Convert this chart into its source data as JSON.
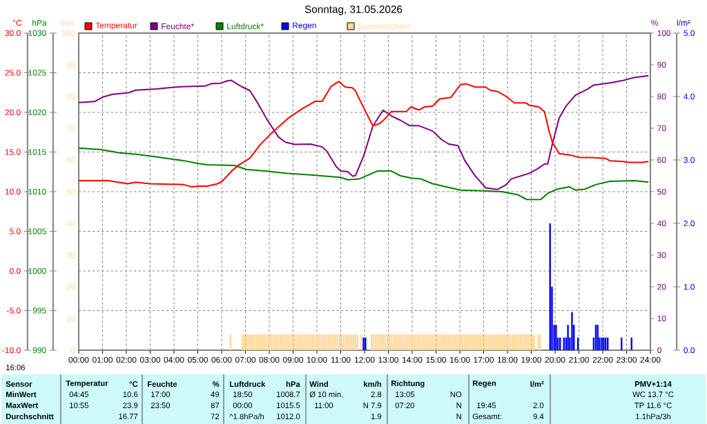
{
  "chart_data": [
    {
      "type": "line",
      "title": "Sonntag, 31.05.2026",
      "ylabel": "°C",
      "y2label": "%",
      "y3label": "hPa",
      "xlim": [
        0,
        24
      ],
      "xticks": [
        {
          "value": 0,
          "label": "00:00"
        },
        {
          "value": 1,
          "label": "01:00"
        },
        {
          "value": 2,
          "label": "02:00"
        },
        {
          "value": 3,
          "label": "03:00"
        },
        {
          "value": 4,
          "label": "04:00"
        },
        {
          "value": 5,
          "label": "05:00"
        },
        {
          "value": 6,
          "label": "06:00"
        },
        {
          "value": 7,
          "label": "07:00"
        },
        {
          "value": 8,
          "label": "08:00"
        },
        {
          "value": 9,
          "label": "09:00"
        },
        {
          "value": 10,
          "label": "10:00"
        },
        {
          "value": 11,
          "label": "11:00"
        },
        {
          "value": 12,
          "label": "12:00"
        },
        {
          "value": 13,
          "label": "13:00"
        },
        {
          "value": 14,
          "label": "14:00"
        },
        {
          "value": 15,
          "label": "15:00"
        },
        {
          "value": 16,
          "label": "16:00"
        },
        {
          "value": 17,
          "label": "17:00"
        },
        {
          "value": 18,
          "label": "18:00"
        },
        {
          "value": 19,
          "label": "19:00"
        },
        {
          "value": 20,
          "label": "20:00"
        },
        {
          "value": 21,
          "label": "21:00"
        },
        {
          "value": 22,
          "label": "22:00"
        },
        {
          "value": 23,
          "label": "23:00"
        },
        {
          "value": 24,
          "label": "24:00"
        }
      ],
      "ylim": [
        -10,
        30
      ],
      "yticks": [
        {
          "value": -10,
          "label": "-10.0"
        },
        {
          "value": -5,
          "label": "-5.0"
        },
        {
          "value": 0,
          "label": "0.0"
        },
        {
          "value": 5,
          "label": "5.0"
        },
        {
          "value": 10,
          "label": "10.0"
        },
        {
          "value": 15,
          "label": "15.0"
        },
        {
          "value": 20,
          "label": "20.0"
        },
        {
          "value": 25,
          "label": "25.0"
        },
        {
          "value": 30,
          "label": "30.0"
        }
      ],
      "y2lim": [
        0,
        100
      ],
      "y2ticks": [
        0,
        10,
        20,
        30,
        40,
        50,
        60,
        70,
        80,
        90,
        100
      ],
      "y3lim": [
        990,
        1030
      ],
      "y3ticks": [
        990,
        995,
        1000,
        1005,
        1010,
        1015,
        1020,
        1025,
        1030
      ],
      "grid": true,
      "legend": "top",
      "series": [
        {
          "name": "Temperatur",
          "color": "#ff0000",
          "x": [
            0,
            1.24,
            2.06,
            2.4,
            2.98,
            4.4,
            4.75,
            5.0,
            5.4,
            5.83,
            6.02,
            6.45,
            6.74,
            7.18,
            7.61,
            8.1,
            8.77,
            9.35,
            9.93,
            10.22,
            10.6,
            10.92,
            11.19,
            11.48,
            11.6,
            11.96,
            12.35,
            12.64,
            12.83,
            13.12,
            13.75,
            13.95,
            14.28,
            14.53,
            14.86,
            15.15,
            15.63,
            16.02,
            16.26,
            16.65,
            17.08,
            17.27,
            17.61,
            17.95,
            18.29,
            18.77,
            18.92,
            19.31,
            19.55,
            19.74,
            19.89,
            20.17,
            20.66,
            21.04,
            21.53,
            22.11,
            22.3,
            22.88,
            23.03,
            23.36,
            23.65,
            23.92
          ],
          "values": [
            11.4,
            11.4,
            11.0,
            11.2,
            11.0,
            10.9,
            10.6,
            10.7,
            10.7,
            11.0,
            11.3,
            12.7,
            13.4,
            14.2,
            15.9,
            17.4,
            19.2,
            20.4,
            21.4,
            21.4,
            23.3,
            23.9,
            23.2,
            23.1,
            22.8,
            20.6,
            18.3,
            18.6,
            19.1,
            20.1,
            20.1,
            20.7,
            20.3,
            20.7,
            20.8,
            21.7,
            21.9,
            23.5,
            23.6,
            23.2,
            23.2,
            22.8,
            22.6,
            22.0,
            21.2,
            21.2,
            20.9,
            20.7,
            20.1,
            17.7,
            16.2,
            14.8,
            14.6,
            14.3,
            14.3,
            14.2,
            13.9,
            13.8,
            13.7,
            13.7,
            13.7,
            13.8
          ]
        },
        {
          "name": "Feuchte*",
          "color": "#800080",
          "axis": "y2",
          "x": [
            0,
            0.66,
            1.04,
            1.43,
            2.1,
            2.4,
            3.27,
            3.85,
            4.33,
            5.3,
            5.58,
            5.97,
            6.21,
            6.41,
            6.84,
            7.18,
            7.52,
            7.9,
            8.39,
            8.68,
            9.06,
            9.74,
            10.22,
            10.42,
            10.8,
            11.0,
            11.29,
            11.5,
            11.62,
            11.96,
            12.35,
            12.78,
            13.12,
            13.51,
            13.9,
            14.28,
            14.86,
            15.25,
            15.54,
            15.92,
            16.21,
            16.6,
            17.08,
            17.57,
            17.95,
            18.15,
            18.92,
            19.26,
            19.55,
            19.69,
            19.89,
            20.17,
            20.46,
            20.85,
            21.33,
            21.62,
            22.3,
            22.88,
            23.27,
            23.92
          ],
          "values": [
            78.1,
            78.4,
            79.9,
            80.7,
            81.2,
            82.0,
            82.4,
            82.8,
            83.1,
            83.3,
            84.1,
            84.2,
            84.9,
            85.1,
            83.1,
            81.9,
            77.9,
            72.8,
            67.2,
            65.6,
            64.9,
            65.0,
            64.1,
            62.7,
            58.0,
            56.5,
            56.3,
            54.9,
            55.1,
            61.2,
            70.7,
            75.7,
            73.9,
            72.5,
            70.8,
            70.8,
            69.1,
            66.3,
            65.0,
            64.5,
            59.8,
            55.4,
            51.2,
            50.7,
            52.2,
            54.0,
            55.8,
            57.2,
            58.7,
            58.8,
            65.2,
            73.2,
            77.0,
            80.4,
            82.2,
            83.6,
            84.3,
            85.1,
            85.9,
            86.6
          ]
        },
        {
          "name": "Luftdruck*",
          "color": "#008000",
          "axis": "y3",
          "x": [
            0,
            0.95,
            1.72,
            2.49,
            3.46,
            4.43,
            4.91,
            5.39,
            6.55,
            7.03,
            7.81,
            8.77,
            9.74,
            11.0,
            11.29,
            11.77,
            12.54,
            13.12,
            13.51,
            13.99,
            14.38,
            14.86,
            16.02,
            16.99,
            17.76,
            18.44,
            18.82,
            19.4,
            19.69,
            20.07,
            20.6,
            20.85,
            21.24,
            21.72,
            22.3,
            23.36,
            23.92
          ],
          "values": [
            1015.5,
            1015.3,
            1014.9,
            1014.7,
            1014.3,
            1013.9,
            1013.6,
            1013.4,
            1013.3,
            1012.8,
            1012.6,
            1012.3,
            1012.1,
            1011.8,
            1011.5,
            1011.6,
            1012.6,
            1012.6,
            1012.0,
            1011.7,
            1011.6,
            1011.0,
            1010.2,
            1010.1,
            1010.0,
            1009.6,
            1009.0,
            1009.0,
            1009.8,
            1010.3,
            1010.6,
            1010.2,
            1010.3,
            1010.9,
            1011.3,
            1011.4,
            1011.2
          ]
        }
      ],
      "annotations": [
        "16:06",
        "Sensor",
        "Temperatur",
        "°C",
        "Feuchte",
        "%",
        "Luftdruck",
        "hPa",
        "Wind",
        "km/h",
        "Richtung",
        "Regen",
        "l/m²",
        "PMV+1:14",
        "MinWert",
        "04:45",
        "10.6",
        "17:00",
        "49",
        "18:50",
        "1008.7",
        "Ø 10 min.",
        "2.8",
        "13:05",
        "NO",
        "WC 13.7 °C",
        "MaxWert",
        "10:55",
        "23.9",
        "23:50",
        "87",
        "00:00",
        "1015.5",
        "11:00",
        "N 7.9",
        "07:20",
        "N",
        "19:45",
        "2.0",
        "TP 11.6 °C",
        "Durchschnitt",
        "16.77",
        "72",
        "^1.8hPa/h",
        "1012.0",
        "1.9",
        "N",
        "Gesamt:",
        "9.4",
        "1.1hPa/3h"
      ]
    },
    {
      "type": "bar",
      "ylabel": "l/m²",
      "y2label": "min",
      "tick_labels": "y",
      "legend": "top",
      "xlim": [
        0,
        24
      ],
      "ylim": [
        0,
        5
      ],
      "yticks": [
        {
          "value": 0,
          "label": "0.0"
        },
        {
          "value": 1,
          "label": "1.0"
        },
        {
          "value": 2,
          "label": "2.0"
        },
        {
          "value": 3,
          "label": "3.0"
        },
        {
          "value": 4,
          "label": "4.0"
        },
        {
          "value": 5,
          "label": "5.0"
        }
      ],
      "y2lim": [
        0,
        100
      ],
      "y2ticks": [
        0,
        10,
        20,
        30,
        40,
        50,
        60,
        70,
        80,
        90,
        100
      ],
      "series": [
        {
          "name": "Regen",
          "color": "#0000ff",
          "x": [
            11.92,
            12.0,
            19.75,
            19.83,
            19.92,
            20.0,
            20.08,
            20.17,
            20.33,
            20.42,
            20.5,
            20.58,
            20.67,
            20.75,
            20.92,
            21.58,
            21.67,
            21.75,
            21.83,
            21.92,
            22.0,
            22.08,
            22.17,
            22.75,
            23.17
          ],
          "values": [
            0.2,
            0.2,
            2.0,
            1.0,
            0.4,
            0.4,
            0.2,
            0.2,
            0.2,
            0.2,
            0.4,
            0.2,
            0.6,
            0.4,
            0.2,
            0.2,
            0.4,
            0.4,
            0.2,
            0.2,
            0.2,
            0.2,
            0.2,
            0.2,
            0.2
          ]
        },
        {
          "name": "Sonnenschein",
          "color": "#ffd89b",
          "axis": "y2",
          "x": [
            6.33,
            6.83,
            6.92,
            7.0,
            7.08,
            7.17,
            7.25,
            7.33,
            7.42,
            7.5,
            7.58,
            7.67,
            7.75,
            7.83,
            7.92,
            8.0,
            8.08,
            8.17,
            8.25,
            8.33,
            8.42,
            8.5,
            8.58,
            8.67,
            8.75,
            8.83,
            8.92,
            9.0,
            9.08,
            9.17,
            9.25,
            9.33,
            9.42,
            9.5,
            9.58,
            9.67,
            9.75,
            9.83,
            9.92,
            10.0,
            10.08,
            10.17,
            10.25,
            10.33,
            10.42,
            10.5,
            10.58,
            10.67,
            10.75,
            10.83,
            10.92,
            11.0,
            11.08,
            11.17,
            11.25,
            11.33,
            11.42,
            11.5,
            11.58,
            11.67,
            11.83,
            12.25,
            12.33,
            12.42,
            12.5,
            12.58,
            12.67,
            12.75,
            12.83,
            12.92,
            13.0,
            13.08,
            13.17,
            13.25,
            13.33,
            13.42,
            13.5,
            13.58,
            13.67,
            13.75,
            13.83,
            13.92,
            14.0,
            14.08,
            14.17,
            14.25,
            14.33,
            14.42,
            14.5,
            14.58,
            14.67,
            14.75,
            14.83,
            14.92,
            15.0,
            15.08,
            15.17,
            15.25,
            15.33,
            15.42,
            15.5,
            15.58,
            15.67,
            15.75,
            15.83,
            15.92,
            16.0,
            16.08,
            16.17,
            16.25,
            16.33,
            16.42,
            16.5,
            16.58,
            16.67,
            16.75,
            16.83,
            16.92,
            17.0,
            17.08,
            17.17,
            17.25,
            17.33,
            17.42,
            17.5,
            17.58,
            17.67,
            17.75,
            17.83,
            17.92,
            18.0,
            18.08,
            18.17,
            18.25,
            18.33,
            18.42,
            18.5,
            18.58,
            18.67,
            18.75,
            18.83,
            18.92,
            19.0,
            19.08,
            19.25,
            19.33
          ],
          "values": [
            5,
            5,
            5,
            5,
            5,
            5,
            5,
            5,
            5,
            5,
            5,
            5,
            5,
            5,
            5,
            5,
            5,
            5,
            5,
            5,
            5,
            5,
            5,
            5,
            5,
            5,
            5,
            5,
            5,
            5,
            5,
            5,
            5,
            5,
            5,
            5,
            5,
            5,
            5,
            5,
            5,
            5,
            5,
            5,
            5,
            5,
            5,
            5,
            5,
            5,
            5,
            5,
            5,
            5,
            5,
            5,
            5,
            5,
            5,
            5,
            5,
            5,
            5,
            5,
            5,
            5,
            5,
            5,
            5,
            5,
            5,
            5,
            5,
            5,
            5,
            5,
            5,
            5,
            5,
            5,
            5,
            5,
            5,
            5,
            5,
            5,
            5,
            5,
            5,
            5,
            5,
            5,
            5,
            5,
            5,
            5,
            5,
            5,
            5,
            5,
            5,
            5,
            5,
            5,
            5,
            5,
            5,
            5,
            5,
            5,
            5,
            5,
            5,
            5,
            5,
            5,
            5,
            5,
            5,
            5,
            5,
            5,
            5,
            5,
            5,
            5,
            5,
            5,
            5,
            5,
            5,
            5,
            5,
            5,
            5,
            5,
            5,
            5,
            5,
            5,
            5,
            5,
            5,
            5,
            5,
            5
          ]
        }
      ]
    }
  ]
}
